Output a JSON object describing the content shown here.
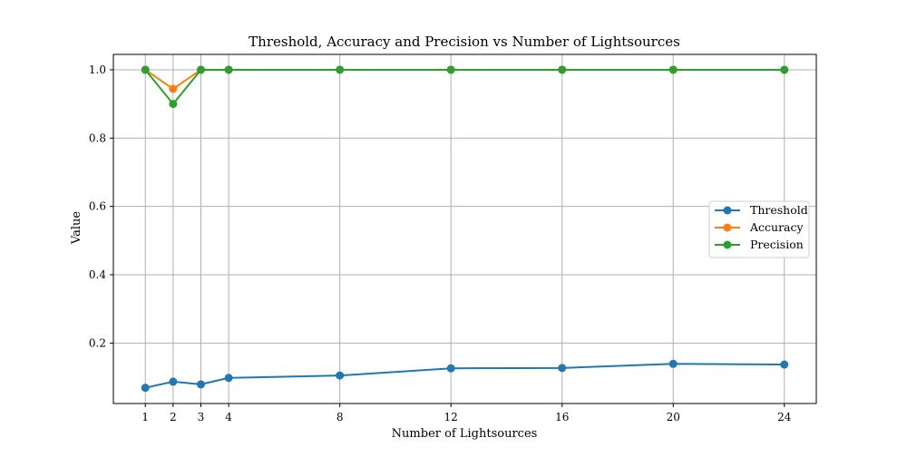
{
  "chart_data": {
    "type": "line",
    "title": "Threshold, Accuracy and Precision vs Number of Lightsources",
    "xlabel": "Number of Lightsources",
    "ylabel": "Value",
    "x": [
      1,
      2,
      3,
      4,
      8,
      12,
      16,
      20,
      24
    ],
    "x_tick_labels": [
      "1",
      "2",
      "3",
      "4",
      "8",
      "12",
      "16",
      "20",
      "24"
    ],
    "xlim": [
      -0.15,
      25.15
    ],
    "ylim": [
      0.023,
      1.045
    ],
    "y_ticks": [
      0.2,
      0.4,
      0.6,
      0.8,
      1.0
    ],
    "y_tick_labels": [
      "0.2",
      "0.4",
      "0.6",
      "0.8",
      "1.0"
    ],
    "grid": true,
    "legend_position": "center-right",
    "series": [
      {
        "name": "Threshold",
        "color": "#1f77b4",
        "values": [
          0.069,
          0.087,
          0.079,
          0.098,
          0.105,
          0.126,
          0.127,
          0.139,
          0.137
        ]
      },
      {
        "name": "Accuracy",
        "color": "#ff7f0e",
        "values": [
          1.0,
          0.944,
          1.0,
          1.0,
          1.0,
          1.0,
          1.0,
          1.0,
          1.0
        ]
      },
      {
        "name": "Precision",
        "color": "#2ca02c",
        "values": [
          1.0,
          0.9,
          1.0,
          1.0,
          1.0,
          1.0,
          1.0,
          1.0,
          1.0
        ]
      }
    ]
  }
}
